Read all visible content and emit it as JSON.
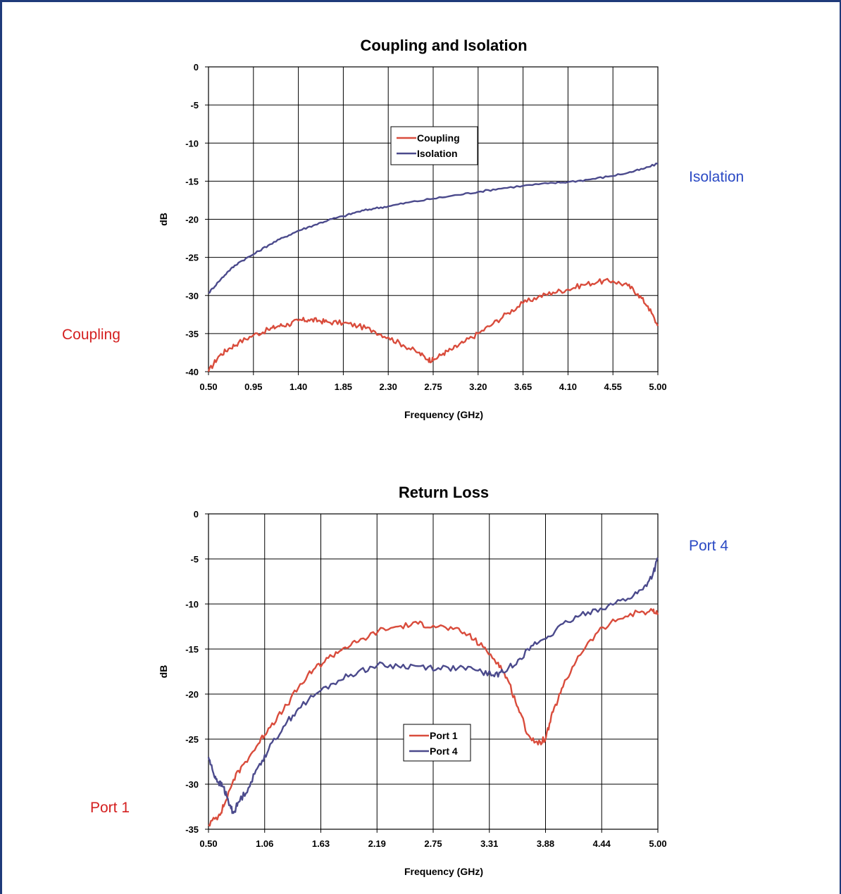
{
  "side_labels": {
    "isolation": "Isolation",
    "coupling": "Coupling",
    "port4": "Port 4",
    "port1": "Port 1"
  },
  "colors": {
    "red": "#d94c3c",
    "purple": "#4b4a8c",
    "label_blue": "#2a49c4",
    "label_red": "#d42020",
    "grid": "#000000"
  },
  "chart_data": [
    {
      "type": "line",
      "title": "Coupling and Isolation",
      "xlabel": "Frequency (GHz)",
      "ylabel": "dB",
      "xlim": [
        0.5,
        5.0
      ],
      "ylim": [
        -40,
        0
      ],
      "x_ticks": [
        "0.50",
        "0.95",
        "1.40",
        "1.85",
        "2.30",
        "2.75",
        "3.20",
        "3.65",
        "4.10",
        "4.55",
        "5.00"
      ],
      "y_ticks": [
        "0",
        "-5",
        "-10",
        "-15",
        "-20",
        "-25",
        "-30",
        "-35",
        "-40"
      ],
      "grid": true,
      "legend": "upper-center",
      "series": [
        {
          "name": "Coupling",
          "color": "#d94c3c",
          "x": [
            0.5,
            0.6,
            0.7,
            0.8,
            0.95,
            1.1,
            1.2,
            1.3,
            1.4,
            1.5,
            1.6,
            1.7,
            1.85,
            2.0,
            2.15,
            2.3,
            2.45,
            2.6,
            2.7,
            2.75,
            2.85,
            2.95,
            3.05,
            3.2,
            3.35,
            3.5,
            3.65,
            3.8,
            3.95,
            4.1,
            4.25,
            4.4,
            4.55,
            4.7,
            4.8,
            4.9,
            5.0
          ],
          "y": [
            -40,
            -38,
            -37,
            -36.2,
            -35.2,
            -34.5,
            -34,
            -33.8,
            -33.3,
            -33.2,
            -33.3,
            -33.5,
            -33.6,
            -34,
            -34.6,
            -35.5,
            -36.5,
            -37.5,
            -38.4,
            -38.5,
            -37.6,
            -37,
            -36.2,
            -35,
            -33.7,
            -32.3,
            -31,
            -30.2,
            -29.6,
            -29.2,
            -28.6,
            -28.2,
            -28.1,
            -28.7,
            -29.8,
            -31.4,
            -34
          ]
        },
        {
          "name": "Isolation",
          "color": "#4b4a8c",
          "x": [
            0.5,
            0.6,
            0.7,
            0.8,
            0.95,
            1.1,
            1.25,
            1.4,
            1.55,
            1.7,
            1.85,
            2.0,
            2.15,
            2.3,
            2.5,
            2.75,
            3.0,
            3.2,
            3.4,
            3.65,
            3.9,
            4.1,
            4.3,
            4.5,
            4.7,
            4.85,
            5.0
          ],
          "y": [
            -29.7,
            -28.2,
            -26.8,
            -25.7,
            -24.6,
            -23.4,
            -22.4,
            -21.5,
            -20.8,
            -20.1,
            -19.6,
            -19,
            -18.6,
            -18.3,
            -17.8,
            -17.3,
            -16.8,
            -16.4,
            -16,
            -15.6,
            -15.3,
            -15.1,
            -14.8,
            -14.4,
            -13.9,
            -13.4,
            -12.7
          ]
        }
      ]
    },
    {
      "type": "line",
      "title": "Return Loss",
      "xlabel": "Frequency (GHz)",
      "ylabel": "dB",
      "xlim": [
        0.5,
        5.0
      ],
      "ylim": [
        -35,
        0
      ],
      "x_ticks": [
        "0.50",
        "1.06",
        "1.63",
        "2.19",
        "2.75",
        "3.31",
        "3.88",
        "4.44",
        "5.00"
      ],
      "y_ticks": [
        "0",
        "-5",
        "-10",
        "-15",
        "-20",
        "-25",
        "-30",
        "-35"
      ],
      "grid": true,
      "legend": "lower-center",
      "series": [
        {
          "name": "Port 1",
          "color": "#d94c3c",
          "x": [
            0.5,
            0.6,
            0.65,
            0.75,
            0.85,
            1.0,
            1.1,
            1.25,
            1.4,
            1.55,
            1.7,
            1.85,
            2.0,
            2.2,
            2.4,
            2.6,
            2.75,
            2.95,
            3.1,
            3.25,
            3.4,
            3.5,
            3.6,
            3.7,
            3.8,
            3.88,
            3.95,
            4.05,
            4.2,
            4.4,
            4.6,
            4.8,
            4.95,
            5.0
          ],
          "y": [
            -34.5,
            -33.5,
            -32.5,
            -29.5,
            -27.8,
            -25.5,
            -23.8,
            -21.8,
            -19.3,
            -17.3,
            -16,
            -14.9,
            -14.2,
            -13,
            -12.5,
            -12.2,
            -12.4,
            -12.8,
            -13.4,
            -14.8,
            -16.5,
            -18.5,
            -21.5,
            -24.5,
            -25.6,
            -24.8,
            -22,
            -19.2,
            -15.8,
            -13.1,
            -11.7,
            -10.9,
            -10.8,
            -11.2
          ]
        },
        {
          "name": "Port 4",
          "color": "#4b4a8c",
          "x": [
            0.5,
            0.55,
            0.6,
            0.65,
            0.7,
            0.75,
            0.8,
            0.9,
            1.0,
            1.1,
            1.25,
            1.4,
            1.6,
            1.8,
            2.0,
            2.19,
            2.4,
            2.6,
            2.8,
            3.0,
            3.2,
            3.35,
            3.45,
            3.6,
            3.75,
            3.9,
            4.1,
            4.3,
            4.5,
            4.7,
            4.85,
            4.95,
            5.0
          ],
          "y": [
            -27,
            -28.8,
            -29.8,
            -30.3,
            -32,
            -33.2,
            -32,
            -30.4,
            -28,
            -26.2,
            -23.6,
            -21.6,
            -19.8,
            -18.5,
            -17.5,
            -16.8,
            -16.9,
            -16.9,
            -17.1,
            -17.1,
            -17.4,
            -17.9,
            -17.6,
            -16.2,
            -14.6,
            -13.6,
            -12,
            -10.9,
            -10.2,
            -9.4,
            -8.4,
            -6.7,
            -5
          ]
        }
      ]
    }
  ]
}
